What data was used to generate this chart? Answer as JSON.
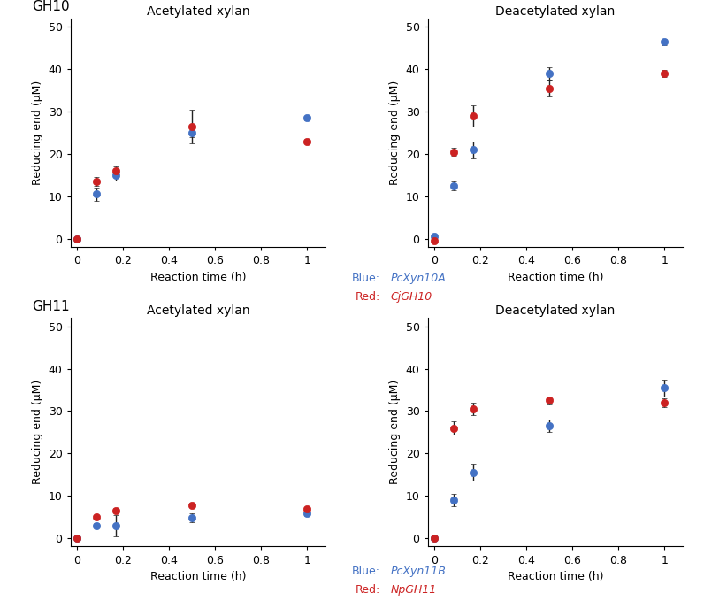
{
  "gh10_acetylated": {
    "blue_x": [
      0,
      0.083,
      0.167,
      0.5,
      1.0
    ],
    "blue_y": [
      0,
      10.5,
      15.0,
      25.0,
      28.5
    ],
    "blue_err": [
      0.3,
      1.5,
      1.2,
      1.0,
      0.5
    ],
    "red_x": [
      0,
      0.083,
      0.167,
      0.5,
      1.0
    ],
    "red_y": [
      0,
      13.5,
      16.0,
      26.5,
      23.0
    ],
    "red_err": [
      0.3,
      1.0,
      1.0,
      4.0,
      0.5
    ]
  },
  "gh10_deacetylated": {
    "blue_x": [
      0,
      0.083,
      0.167,
      0.5,
      1.0
    ],
    "blue_y": [
      0.5,
      12.5,
      21.0,
      39.0,
      46.5
    ],
    "blue_err": [
      0.5,
      1.0,
      2.0,
      1.5,
      0.7
    ],
    "red_x": [
      0,
      0.083,
      0.167,
      0.5,
      1.0
    ],
    "red_y": [
      -0.5,
      20.5,
      29.0,
      35.5,
      39.0
    ],
    "red_err": [
      0.3,
      1.0,
      2.5,
      2.0,
      0.8
    ]
  },
  "gh11_acetylated": {
    "blue_x": [
      0,
      0.083,
      0.167,
      0.5,
      1.0
    ],
    "blue_y": [
      0,
      3.0,
      3.0,
      4.8,
      5.8
    ],
    "blue_err": [
      0.3,
      0.5,
      2.5,
      1.0,
      0.5
    ],
    "red_x": [
      0,
      0.083,
      0.167,
      0.5,
      1.0
    ],
    "red_y": [
      0,
      5.0,
      6.5,
      7.8,
      6.8
    ],
    "red_err": [
      0.3,
      0.5,
      0.5,
      0.5,
      0.3
    ]
  },
  "gh11_deacetylated": {
    "blue_x": [
      0,
      0.083,
      0.167,
      0.5,
      1.0
    ],
    "blue_y": [
      0,
      9.0,
      15.5,
      26.5,
      35.5
    ],
    "blue_err": [
      0.5,
      1.5,
      2.0,
      1.5,
      2.0
    ],
    "red_x": [
      0,
      0.083,
      0.167,
      0.5,
      1.0
    ],
    "red_y": [
      0,
      26.0,
      30.5,
      32.5,
      32.0
    ],
    "red_err": [
      0.3,
      1.5,
      1.5,
      1.0,
      1.0
    ]
  },
  "blue_color": "#4472C4",
  "red_color": "#CC2222",
  "marker_size": 6,
  "linewidth": 1.5,
  "ylim": [
    -2,
    52
  ],
  "xlim": [
    -0.03,
    1.08
  ],
  "xticks": [
    0,
    0.2,
    0.4,
    0.6,
    0.8,
    1.0
  ],
  "xticklabels": [
    "0",
    "0.2",
    "0.4",
    "0.6",
    "0.8",
    "1"
  ],
  "yticks": [
    0,
    10,
    20,
    30,
    40,
    50
  ],
  "yticklabels": [
    "0",
    "10",
    "20",
    "30",
    "40",
    "50"
  ],
  "xlabel": "Reaction time (h)",
  "ylabel": "Reducing end (μM)",
  "titles": [
    "Acetylated xylan",
    "Deacetylated xylan",
    "Acetylated xylan",
    "Deacetylated xylan"
  ],
  "gh10_label": "GH10",
  "gh11_label": "GH11",
  "legend1_blue_label": "Blue:",
  "legend1_blue_name": "PcXyn10A",
  "legend1_red_label": "Red:",
  "legend1_red_name": "CjGH10",
  "legend2_blue_label": "Blue:",
  "legend2_blue_name": "PcXyn11B",
  "legend2_red_label": "Red:",
  "legend2_red_name": "NpGH11"
}
